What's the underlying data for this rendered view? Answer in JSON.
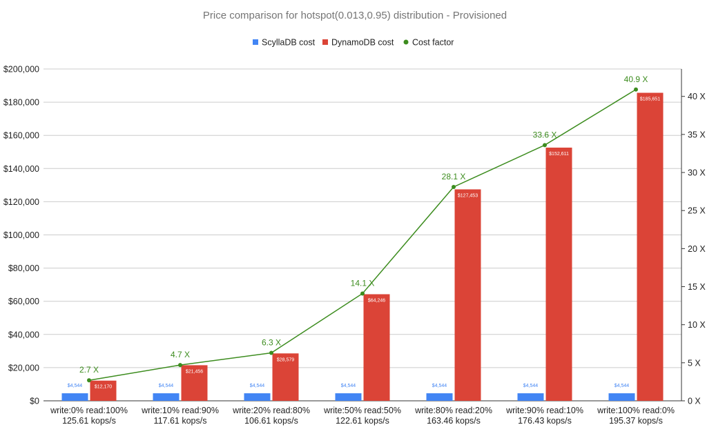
{
  "chart_data": {
    "type": "bar",
    "title": "Price comparison for hotspot(0.013,0.95) distribution - Provisioned",
    "categories": [
      [
        "write:0% read:100%",
        "125.61 kops/s"
      ],
      [
        "write:10% read:90%",
        "117.61 kops/s"
      ],
      [
        "write:20% read:80%",
        "106.61 kops/s"
      ],
      [
        "write:50% read:50%",
        "122.61 kops/s"
      ],
      [
        "write:80% read:20%",
        "163.46 kops/s"
      ],
      [
        "write:90% read:10%",
        "176.43 kops/s"
      ],
      [
        "write:100% read:0%",
        "195.37 kops/s"
      ]
    ],
    "series": [
      {
        "name": "ScyllaDB cost",
        "kind": "bar",
        "axis": "left",
        "color": "#4285f4",
        "values": [
          4544,
          4544,
          4544,
          4544,
          4544,
          4544,
          4544
        ],
        "labels": [
          "$4,544",
          "$4,544",
          "$4,544",
          "$4,544",
          "$4,544",
          "$4,544",
          "$4,544"
        ]
      },
      {
        "name": "DynamoDB cost",
        "kind": "bar",
        "axis": "left",
        "color": "#db4437",
        "values": [
          12170,
          21456,
          28579,
          64246,
          127453,
          152611,
          185651
        ],
        "labels": [
          "$12,170",
          "$21,456",
          "$28,579",
          "$64,246",
          "$127,453",
          "$152,611",
          "$185,651"
        ]
      },
      {
        "name": "Cost factor",
        "kind": "line",
        "axis": "right",
        "color": "#3c8c1e",
        "values": [
          2.7,
          4.7,
          6.3,
          14.1,
          28.1,
          33.6,
          40.9
        ],
        "labels": [
          "2.7 X",
          "4.7 X",
          "6.3 X",
          "14.1 X",
          "28.1 X",
          "33.6 X",
          "40.9 X"
        ]
      }
    ],
    "y_left": {
      "lim": [
        0,
        200000
      ],
      "ticks": [
        0,
        20000,
        40000,
        60000,
        80000,
        100000,
        120000,
        140000,
        160000,
        180000,
        200000
      ],
      "tick_labels": [
        "$0",
        "$20,000",
        "$40,000",
        "$60,000",
        "$80,000",
        "$100,000",
        "$120,000",
        "$140,000",
        "$160,000",
        "$180,000",
        "$200,000"
      ]
    },
    "y_right": {
      "lim": [
        0,
        43.6
      ],
      "ticks": [
        0,
        5,
        10,
        15,
        20,
        25,
        30,
        35,
        40
      ],
      "tick_labels": [
        "0 X",
        "5 X",
        "10 X",
        "15 X",
        "20 X",
        "25 X",
        "30 X",
        "35 X",
        "40 X"
      ]
    },
    "grid": true,
    "legend": "top-center"
  }
}
